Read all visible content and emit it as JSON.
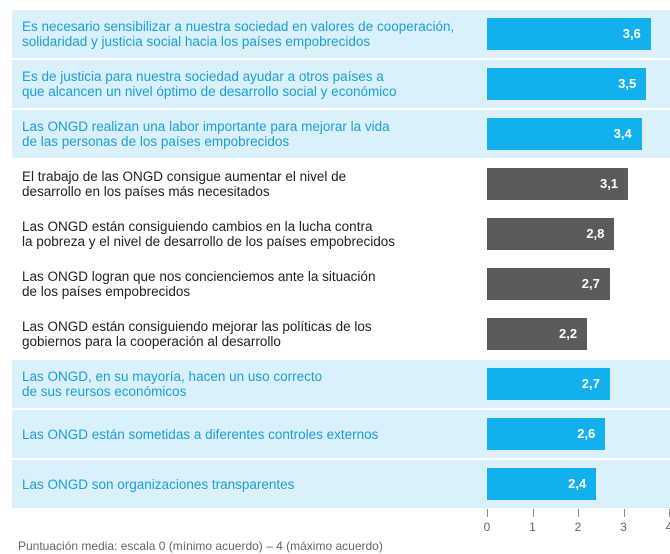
{
  "chart_data": {
    "type": "bar",
    "orientation": "horizontal",
    "categories": [
      "Es necesario sensibilizar a nuestra sociedad en valores de cooperación,\nsolidaridad y justicia social hacia los países empobrecidos",
      "Es de justicia para nuestra sociedad ayudar a otros países a\nque alcancen un nivel óptimo de desarrollo social y económico",
      "Las ONGD realizan una labor importante para mejorar la vida\nde las personas de los países empobrecidos",
      "El trabajo de las ONGD consigue aumentar el nivel de\ndesarrollo en los países más necesitados",
      "Las ONGD están consiguiendo cambios en la lucha contra\nla pobreza y el nivel de desarrollo de los países empobrecidos",
      "Las ONGD logran que nos concienciemos ante la situación\nde los países empobrecidos",
      "Las ONGD están consiguiendo mejorar las políticas de los\ngobiernos para la cooperación al desarrollo",
      "Las ONGD, en su mayoría, hacen un uso correcto\nde sus reursos económicos",
      "Las ONGD están sometidas a diferentes controles externos",
      "Las ONGD son organizaciones transparentes"
    ],
    "values": [
      3.6,
      3.5,
      3.4,
      3.1,
      2.8,
      2.7,
      2.2,
      2.7,
      2.6,
      2.4
    ],
    "value_labels": [
      "3,6",
      "3,5",
      "3,4",
      "3,1",
      "2,8",
      "2,7",
      "2,2",
      "2,7",
      "2,6",
      "2,4"
    ],
    "colors": [
      "#12b0ec",
      "#12b0ec",
      "#12b0ec",
      "#5b5b5b",
      "#5b5b5b",
      "#5b5b5b",
      "#5b5b5b",
      "#12b0ec",
      "#12b0ec",
      "#12b0ec"
    ],
    "xlim": [
      0,
      4
    ],
    "xticks": [
      0,
      1,
      2,
      3,
      4
    ],
    "note": "Puntuación media: escala 0 (mínimo acuerdo) – 4 (máximo acuerdo)"
  }
}
